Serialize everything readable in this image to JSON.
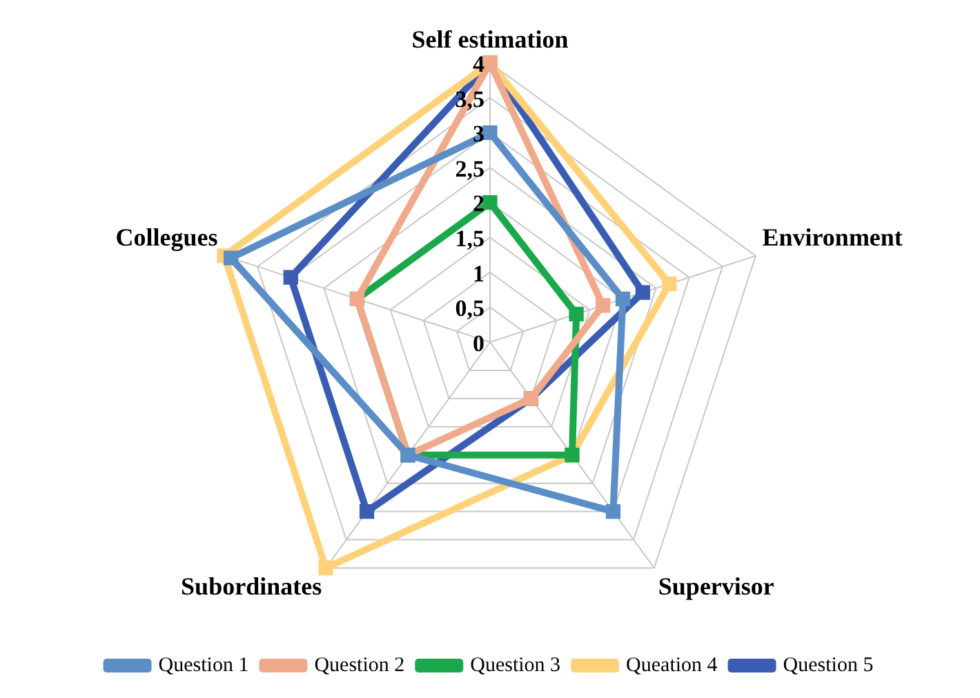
{
  "chart_data": {
    "type": "radar",
    "categories": [
      "Self estimation",
      "Environment",
      "Supervisor",
      "Subordinates",
      "Collegues"
    ],
    "series": [
      {
        "name": "Question 1",
        "color": "#5b8ec6",
        "values": [
          3,
          2,
          3,
          2,
          3.9
        ]
      },
      {
        "name": "Question 2",
        "color": "#f0a98a",
        "values": [
          4,
          1.7,
          1,
          2,
          2
        ]
      },
      {
        "name": "Question 3",
        "color": "#1aa84b",
        "values": [
          2,
          1.3,
          2,
          2,
          2
        ]
      },
      {
        "name": "Queation 4",
        "color": "#ffd27a",
        "values": [
          4,
          2.7,
          2,
          4,
          4
        ]
      },
      {
        "name": "Question 5",
        "color": "#3a5db3",
        "values": [
          4,
          2.3,
          1,
          3,
          3
        ]
      }
    ],
    "ylim": [
      0,
      4
    ],
    "yticks": [
      0,
      {
        "value": 0.5,
        "label": "0,5"
      },
      1,
      {
        "value": 1.5,
        "label": "1,5"
      },
      2,
      {
        "value": 2.5,
        "label": "2,5"
      },
      3,
      {
        "value": 3.5,
        "label": "3,5"
      },
      4
    ],
    "legend": "bottom",
    "marker": "square",
    "grid": true
  }
}
